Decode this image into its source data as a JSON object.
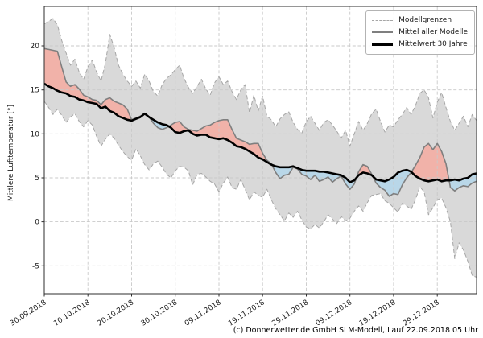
{
  "footer": "(c) Donnerwetter.de GmbH SLM-Modell, Lauf 22.09.2018 05 Uhr",
  "chart_data": {
    "type": "line",
    "title": "",
    "ylabel": "Mittlere Lufttemperatur [°]",
    "xlabel": "",
    "x_unit": "days since 30.09.2018",
    "x_tick_labels": [
      "30.09.2018",
      "10.10.2018",
      "20.10.2018",
      "30.10.2018",
      "09.11.2018",
      "19.11.2018",
      "29.11.2018",
      "09.12.2018",
      "19.12.2018",
      "29.12.2018"
    ],
    "x_tick_days": [
      0,
      10,
      20,
      30,
      40,
      50,
      60,
      70,
      80,
      90
    ],
    "y_ticks": [
      20,
      15,
      10,
      5,
      0,
      -5
    ],
    "ylim": [
      -8.2,
      24.5
    ],
    "x_range_days": [
      0,
      99
    ],
    "grid": true,
    "legend_position": "upper right",
    "legend": [
      {
        "label": "Modellgrenzen",
        "style": "dashed-gray"
      },
      {
        "label": "Mittel aller Modelle",
        "style": "solid-gray"
      },
      {
        "label": "Mittelwert 30 Jahre",
        "style": "solid-black-thick"
      }
    ],
    "colors": {
      "band": "#d9d9d9",
      "above_normal": "#f1b2a9",
      "below_normal": "#b9d7e8",
      "model_mean_line": "#7f7f7f",
      "mean30_line": "#000000",
      "bounds_line": "#a6a6a6",
      "grid_line": "#c9c9c9"
    },
    "series": [
      {
        "name": "Modellgrenzen oben",
        "role": "upper_bound",
        "values": [
          22.5,
          22.8,
          23.1,
          22.4,
          20.6,
          19.2,
          17.8,
          18.5,
          17.0,
          16.2,
          17.6,
          18.4,
          17.0,
          16.0,
          18.0,
          21.3,
          19.8,
          17.8,
          16.8,
          16.0,
          15.4,
          16.0,
          15.2,
          16.8,
          16.0,
          14.8,
          14.3,
          15.6,
          16.3,
          16.7,
          17.3,
          17.8,
          16.3,
          15.3,
          14.6,
          15.4,
          16.2,
          15.1,
          14.4,
          15.8,
          16.5,
          15.6,
          16.0,
          14.8,
          13.9,
          15.0,
          15.6,
          12.4,
          14.4,
          12.6,
          14.3,
          12.0,
          11.6,
          10.8,
          11.7,
          12.2,
          12.5,
          11.3,
          10.5,
          10.1,
          11.4,
          12.0,
          11.2,
          10.4,
          11.3,
          11.6,
          11.0,
          10.3,
          9.5,
          10.4,
          8.6,
          10.0,
          11.4,
          10.4,
          11.2,
          12.3,
          12.8,
          11.4,
          10.2,
          11.0,
          10.8,
          11.6,
          12.2,
          13.0,
          12.2,
          13.2,
          14.6,
          15.0,
          14.1,
          11.8,
          13.6,
          14.7,
          13.0,
          11.4,
          10.4,
          11.2,
          12.0,
          10.8,
          12.2,
          11.5
        ]
      },
      {
        "name": "Modellgrenzen unten",
        "role": "lower_bound",
        "values": [
          13.7,
          13.0,
          12.2,
          12.8,
          12.1,
          11.3,
          11.9,
          12.3,
          11.4,
          10.8,
          11.5,
          11.0,
          9.7,
          8.6,
          9.4,
          10.0,
          9.5,
          8.7,
          8.0,
          7.4,
          7.0,
          8.3,
          7.5,
          6.5,
          5.9,
          6.6,
          6.9,
          6.2,
          5.4,
          5.0,
          5.8,
          6.3,
          6.2,
          5.8,
          4.2,
          5.4,
          5.5,
          5.1,
          4.6,
          4.3,
          3.4,
          4.4,
          5.1,
          3.9,
          3.7,
          4.8,
          3.7,
          2.5,
          3.4,
          3.0,
          2.8,
          3.7,
          2.5,
          1.5,
          0.8,
          0.1,
          1.0,
          0.5,
          1.2,
          0.2,
          -0.6,
          -0.8,
          -0.3,
          -0.7,
          0.0,
          0.8,
          0.3,
          -0.2,
          0.6,
          0.1,
          0.4,
          1.2,
          1.8,
          1.2,
          2.2,
          3.0,
          3.1,
          3.2,
          2.4,
          2.1,
          1.6,
          1.1,
          2.1,
          1.8,
          1.4,
          2.5,
          4.0,
          3.4,
          0.8,
          1.6,
          2.5,
          2.7,
          1.6,
          0.0,
          -4.2,
          -2.4,
          -3.2,
          -4.5,
          -6.1,
          -6.3
        ]
      },
      {
        "name": "Mittel aller Modelle",
        "role": "model_mean",
        "values": [
          19.7,
          19.6,
          19.5,
          19.4,
          17.6,
          15.9,
          15.4,
          15.6,
          15.1,
          14.4,
          14.2,
          13.9,
          13.8,
          13.3,
          13.9,
          14.1,
          13.7,
          13.5,
          13.3,
          12.8,
          11.6,
          11.8,
          12.0,
          12.3,
          11.9,
          11.2,
          10.7,
          10.5,
          10.7,
          11.0,
          11.3,
          11.4,
          10.8,
          10.5,
          10.4,
          10.3,
          10.6,
          10.9,
          11.0,
          11.3,
          11.5,
          11.6,
          11.6,
          10.5,
          9.5,
          9.3,
          9.1,
          8.8,
          8.9,
          8.9,
          7.8,
          7.0,
          6.6,
          5.6,
          4.9,
          5.3,
          5.4,
          6.2,
          6.0,
          5.4,
          5.2,
          4.8,
          5.3,
          4.6,
          4.8,
          5.1,
          4.5,
          4.9,
          5.2,
          4.3,
          3.7,
          4.3,
          5.7,
          6.5,
          6.3,
          5.4,
          4.4,
          3.9,
          3.6,
          2.9,
          3.2,
          3.1,
          4.2,
          5.0,
          5.6,
          6.4,
          7.3,
          8.5,
          8.9,
          8.2,
          8.9,
          8.0,
          6.6,
          3.9,
          3.5,
          3.9,
          4.1,
          4.0,
          4.4,
          4.6
        ]
      },
      {
        "name": "Mittelwert 30 Jahre",
        "role": "climate_mean_30y",
        "values": [
          15.7,
          15.4,
          15.2,
          14.9,
          14.7,
          14.6,
          14.3,
          14.2,
          13.9,
          13.8,
          13.6,
          13.5,
          13.4,
          12.9,
          13.1,
          12.6,
          12.4,
          12.0,
          11.8,
          11.6,
          11.5,
          11.7,
          11.9,
          12.3,
          11.9,
          11.6,
          11.3,
          11.1,
          11.0,
          10.7,
          10.2,
          10.1,
          10.3,
          10.4,
          10.0,
          9.8,
          9.9,
          9.9,
          9.6,
          9.5,
          9.4,
          9.5,
          9.3,
          9.0,
          8.6,
          8.5,
          8.3,
          8.0,
          7.7,
          7.3,
          7.1,
          6.8,
          6.5,
          6.3,
          6.2,
          6.2,
          6.2,
          6.3,
          6.1,
          5.9,
          5.8,
          5.8,
          5.8,
          5.7,
          5.7,
          5.6,
          5.5,
          5.4,
          5.3,
          5.0,
          4.5,
          4.7,
          5.3,
          5.6,
          5.5,
          5.3,
          4.8,
          4.7,
          4.6,
          4.8,
          5.1,
          5.6,
          5.8,
          5.9,
          5.7,
          5.2,
          4.9,
          4.7,
          4.6,
          4.7,
          4.8,
          4.6,
          4.7,
          4.7,
          4.8,
          4.7,
          4.9,
          5.0,
          5.4,
          5.5
        ]
      }
    ]
  }
}
